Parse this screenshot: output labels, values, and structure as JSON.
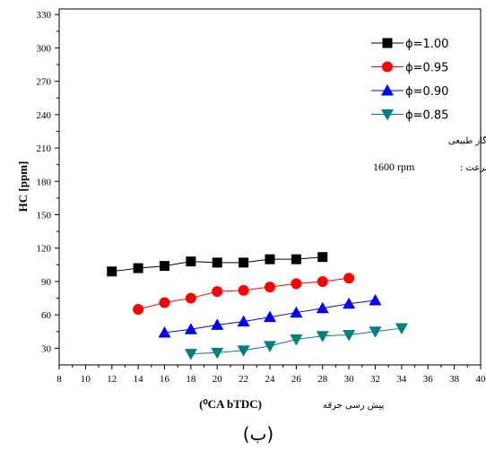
{
  "chart_data": {
    "type": "line",
    "xlabel": "(⁰CA bTDC)",
    "xlabel_fa": "پیش رسی جرقه",
    "ylabel": "HC [ppm]",
    "xlim": [
      8,
      40
    ],
    "ylim": [
      15,
      335
    ],
    "xticks": [
      8,
      10,
      12,
      14,
      16,
      18,
      20,
      22,
      24,
      26,
      28,
      30,
      32,
      34,
      36,
      38,
      40
    ],
    "yticks": [
      30,
      60,
      90,
      120,
      150,
      180,
      210,
      240,
      270,
      300,
      330
    ],
    "legend_position": "top-right",
    "series": [
      {
        "name": "ϕ=1.00",
        "color": "#000000",
        "marker": "square",
        "x": [
          12,
          14,
          16,
          18,
          20,
          22,
          24,
          26,
          28
        ],
        "y": [
          99,
          102,
          104,
          108,
          107,
          107,
          110,
          110,
          112
        ]
      },
      {
        "name": "ϕ=0.95",
        "color": "#ff0000",
        "marker": "circle",
        "x": [
          14,
          16,
          18,
          20,
          22,
          24,
          26,
          28,
          30
        ],
        "y": [
          65,
          71,
          75,
          81,
          82,
          85,
          88,
          90,
          93
        ]
      },
      {
        "name": "ϕ=0.90",
        "color": "#0000ff",
        "marker": "triangle-up",
        "x": [
          16,
          18,
          20,
          22,
          24,
          26,
          28,
          30,
          32
        ],
        "y": [
          44,
          47,
          51,
          54,
          58,
          62,
          66,
          70,
          73
        ]
      },
      {
        "name": "ϕ=0.85",
        "color": "#008080",
        "marker": "triangle-down",
        "x": [
          18,
          20,
          22,
          24,
          26,
          28,
          30,
          32,
          34
        ],
        "y": [
          25,
          26,
          28,
          32,
          38,
          41,
          42,
          45,
          48
        ]
      }
    ],
    "annotations": {
      "fuel": "سوخت: گاز طبیعی",
      "speed_label": "سرعت :",
      "speed_value": "1600 rpm"
    },
    "panel_label": "(ب)"
  }
}
